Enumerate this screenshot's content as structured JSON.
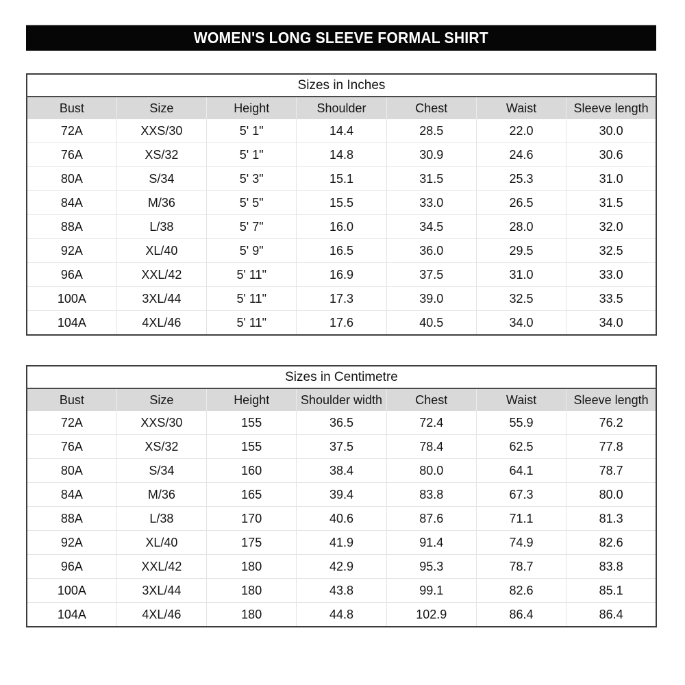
{
  "banner": {
    "title": "WOMEN'S LONG SLEEVE FORMAL SHIRT"
  },
  "colors": {
    "banner_bg": "#060606",
    "banner_text": "#ffffff",
    "header_row_bg": "#d9d9d9",
    "grid_line": "#e4e4e4",
    "outer_border": "#3d3d3d"
  },
  "tables": [
    {
      "title": "Sizes in Inches",
      "headers": [
        "Bust",
        "Size",
        "Height",
        "Shoulder",
        "Chest",
        "Waist",
        "Sleeve length"
      ],
      "rows": [
        [
          "72A",
          "XXS/30",
          "5' 1\"",
          "14.4",
          "28.5",
          "22.0",
          "30.0"
        ],
        [
          "76A",
          "XS/32",
          "5' 1\"",
          "14.8",
          "30.9",
          "24.6",
          "30.6"
        ],
        [
          "80A",
          "S/34",
          "5' 3\"",
          "15.1",
          "31.5",
          "25.3",
          "31.0"
        ],
        [
          "84A",
          "M/36",
          "5' 5\"",
          "15.5",
          "33.0",
          "26.5",
          "31.5"
        ],
        [
          "88A",
          "L/38",
          "5' 7\"",
          "16.0",
          "34.5",
          "28.0",
          "32.0"
        ],
        [
          "92A",
          "XL/40",
          "5' 9\"",
          "16.5",
          "36.0",
          "29.5",
          "32.5"
        ],
        [
          "96A",
          "XXL/42",
          "5' 11\"",
          "16.9",
          "37.5",
          "31.0",
          "33.0"
        ],
        [
          "100A",
          "3XL/44",
          "5' 11\"",
          "17.3",
          "39.0",
          "32.5",
          "33.5"
        ],
        [
          "104A",
          "4XL/46",
          "5' 11\"",
          "17.6",
          "40.5",
          "34.0",
          "34.0"
        ]
      ]
    },
    {
      "title": "Sizes in Centimetre",
      "headers": [
        "Bust",
        "Size",
        "Height",
        "Shoulder width",
        "Chest",
        "Waist",
        "Sleeve length"
      ],
      "rows": [
        [
          "72A",
          "XXS/30",
          "155",
          "36.5",
          "72.4",
          "55.9",
          "76.2"
        ],
        [
          "76A",
          "XS/32",
          "155",
          "37.5",
          "78.4",
          "62.5",
          "77.8"
        ],
        [
          "80A",
          "S/34",
          "160",
          "38.4",
          "80.0",
          "64.1",
          "78.7"
        ],
        [
          "84A",
          "M/36",
          "165",
          "39.4",
          "83.8",
          "67.3",
          "80.0"
        ],
        [
          "88A",
          "L/38",
          "170",
          "40.6",
          "87.6",
          "71.1",
          "81.3"
        ],
        [
          "92A",
          "XL/40",
          "175",
          "41.9",
          "91.4",
          "74.9",
          "82.6"
        ],
        [
          "96A",
          "XXL/42",
          "180",
          "42.9",
          "95.3",
          "78.7",
          "83.8"
        ],
        [
          "100A",
          "3XL/44",
          "180",
          "43.8",
          "99.1",
          "82.6",
          "85.1"
        ],
        [
          "104A",
          "4XL/46",
          "180",
          "44.8",
          "102.9",
          "86.4",
          "86.4"
        ]
      ]
    }
  ]
}
